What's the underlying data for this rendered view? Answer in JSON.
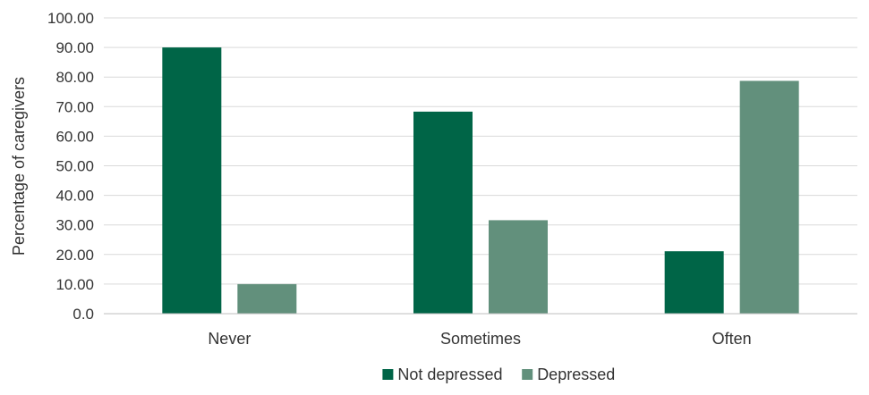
{
  "chart_data": {
    "type": "bar",
    "title": "",
    "xlabel": "",
    "ylabel": "Percentage of caregivers",
    "ylim": [
      0,
      100
    ],
    "y_ticks": [
      "0.0",
      "10.00",
      "20.00",
      "30.00",
      "40.00",
      "50.00",
      "60.00",
      "70.00",
      "80.00",
      "90.00",
      "100.00"
    ],
    "categories": [
      "Never",
      "Sometimes",
      "Often"
    ],
    "series": [
      {
        "name": "Not depressed",
        "color": "#006547",
        "values": [
          90.0,
          68.3,
          21.1
        ]
      },
      {
        "name": "Depressed",
        "color": "#62907c",
        "values": [
          10.0,
          31.6,
          78.7
        ]
      }
    ],
    "grid": true,
    "legend_position": "bottom-center"
  }
}
